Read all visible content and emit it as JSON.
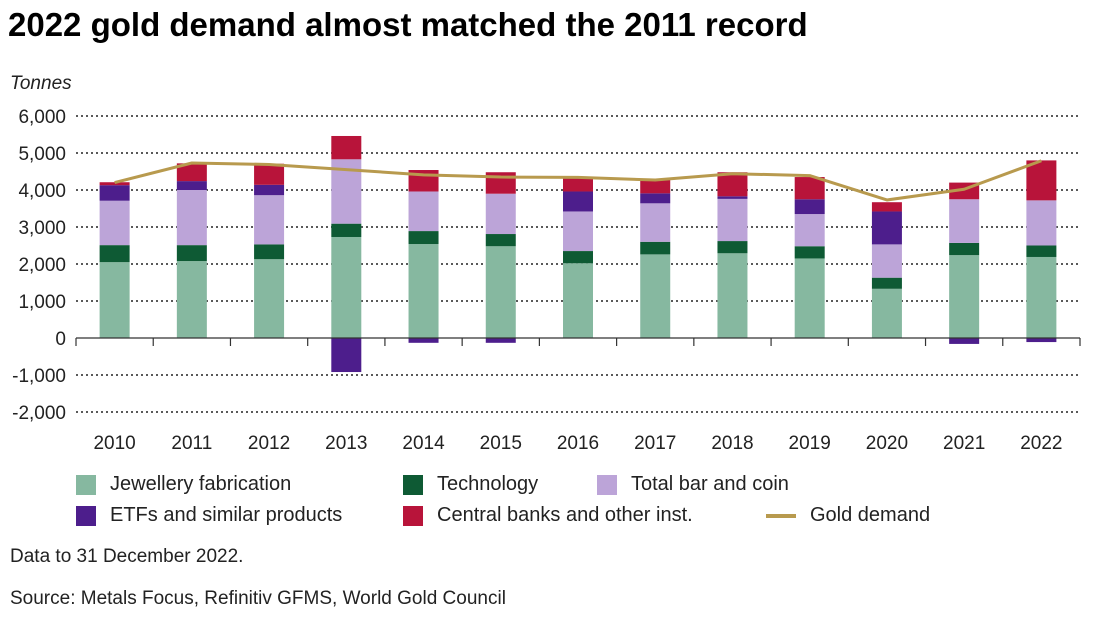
{
  "title": "2022 gold demand almost matched the 2011 record",
  "note": "Data to 31 December 2022.",
  "source": "Source: Metals Focus, Refinitiv GFMS, World Gold Council",
  "chart_data": {
    "type": "bar",
    "stacked": true,
    "ylabel": "Tonnes",
    "ylim": [
      -2000,
      6000
    ],
    "yticks": [
      6000,
      5000,
      4000,
      3000,
      2000,
      1000,
      0,
      -1000,
      -2000
    ],
    "ytick_labels": [
      "6,000",
      "5,000",
      "4,000",
      "3,000",
      "2,000",
      "1,000",
      "0",
      "-1,000",
      "-2,000"
    ],
    "grid": true,
    "categories": [
      "2010",
      "2011",
      "2012",
      "2013",
      "2014",
      "2015",
      "2016",
      "2017",
      "2018",
      "2019",
      "2020",
      "2021",
      "2022"
    ],
    "series": [
      {
        "name": "Jewellery fabrication",
        "color": "#86b8a0",
        "values": [
          2050,
          2080,
          2130,
          2730,
          2540,
          2480,
          2020,
          2260,
          2290,
          2150,
          1330,
          2240,
          2190
        ]
      },
      {
        "name": "Technology",
        "color": "#0e5a34",
        "values": [
          460,
          430,
          400,
          360,
          350,
          330,
          330,
          340,
          330,
          330,
          300,
          330,
          310
        ]
      },
      {
        "name": "Total bar and coin",
        "color": "#bca4d8",
        "values": [
          1200,
          1490,
          1330,
          1740,
          1070,
          1090,
          1070,
          1040,
          1140,
          870,
          900,
          1180,
          1220
        ]
      },
      {
        "name": "ETFs and similar products",
        "color": "#4d1e8c",
        "values": [
          420,
          240,
          280,
          -920,
          -130,
          -130,
          540,
          270,
          70,
          400,
          890,
          -160,
          -110
        ]
      },
      {
        "name": "Central banks and other inst.",
        "color": "#b8143a",
        "values": [
          80,
          480,
          570,
          630,
          580,
          580,
          390,
          370,
          650,
          600,
          250,
          450,
          1080
        ]
      }
    ],
    "line": {
      "name": "Gold demand",
      "color": "#b89a4e",
      "values": [
        4200,
        4730,
        4690,
        4550,
        4410,
        4350,
        4340,
        4270,
        4440,
        4390,
        3730,
        4020,
        4790
      ]
    },
    "legend_position": "bottom"
  }
}
